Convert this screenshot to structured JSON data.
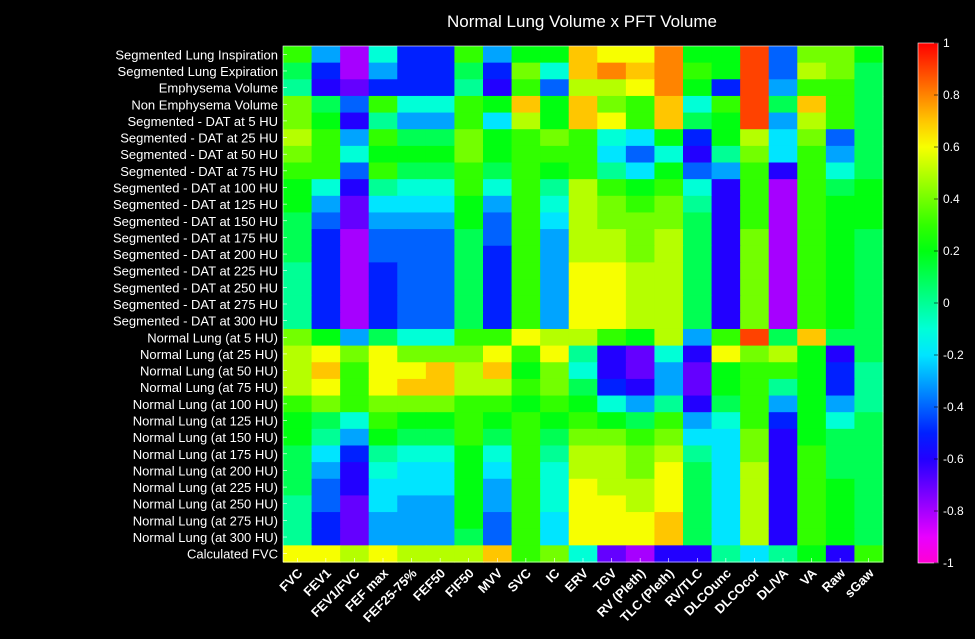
{
  "chart_data": {
    "type": "heatmap",
    "title": "Normal Lung Volume x PFT Volume",
    "rows": [
      "Segmented Lung Inspiration",
      "Segmented Lung Expiration",
      "Emphysema Volume",
      "Non Emphysema Volume",
      "Segmented - DAT at 5 HU",
      "Segmented - DAT at 25 HU",
      "Segmented - DAT at 50 HU",
      "Segmented - DAT at 75 HU",
      "Segmented - DAT at 100 HU",
      "Segmented - DAT at 125 HU",
      "Segmented - DAT at 150 HU",
      "Segmented - DAT at 175 HU",
      "Segmented - DAT at 200 HU",
      "Segmented - DAT at 225 HU",
      "Segmented - DAT at 250 HU",
      "Segmented - DAT at 275 HU",
      "Segmented - DAT at 300 HU",
      "Normal Lung (at 5 HU)",
      "Normal Lung (at 25 HU)",
      "Normal Lung (at 50 HU)",
      "Normal Lung (at 75 HU)",
      "Normal Lung (at 100 HU)",
      "Normal Lung (at 125 HU)",
      "Normal Lung (at 150 HU)",
      "Normal Lung (at 175 HU)",
      "Normal Lung (at 200 HU)",
      "Normal Lung (at 225 HU)",
      "Normal Lung (at 250 HU)",
      "Normal Lung (at 275 HU)",
      "Normal Lung (at 300 HU)",
      "Calculated FVC"
    ],
    "columns": [
      "FVC",
      "FEV1",
      "FEV1/FVC",
      "FEF max",
      "FEF25-75%",
      "FEF50",
      "FIF50",
      "MVV",
      "SVC",
      "IC",
      "ERV",
      "TGV",
      "RV (Pleth)",
      "TLC (Pleth)",
      "RV/TLC",
      "DLCOunc",
      "DLCOcor",
      "DL/VA",
      "VA",
      "Raw",
      "sGaw"
    ],
    "values": [
      [
        0.3,
        -0.3,
        -0.8,
        -0.1,
        -0.5,
        -0.5,
        0.3,
        -0.3,
        0.2,
        0.2,
        0.7,
        0.6,
        0.6,
        0.8,
        0.2,
        0.2,
        0.9,
        -0.4,
        0.4,
        0.4,
        0.2
      ],
      [
        0.1,
        -0.5,
        -0.8,
        -0.3,
        -0.5,
        -0.5,
        0.1,
        -0.5,
        0.4,
        -0.1,
        0.7,
        0.8,
        0.7,
        0.8,
        0.3,
        0.2,
        0.9,
        -0.4,
        0.5,
        0.4,
        0.1
      ],
      [
        0.0,
        -0.6,
        -0.7,
        -0.5,
        -0.5,
        -0.5,
        0.0,
        -0.6,
        0.3,
        -0.4,
        0.5,
        0.5,
        0.6,
        0.8,
        0.2,
        -0.5,
        0.9,
        -0.3,
        0.3,
        0.3,
        0.1
      ],
      [
        0.4,
        0.1,
        -0.4,
        0.3,
        -0.1,
        -0.1,
        0.3,
        0.2,
        0.7,
        0.2,
        0.7,
        0.4,
        0.3,
        0.7,
        -0.1,
        0.3,
        0.9,
        0.1,
        0.7,
        0.3,
        0.1
      ],
      [
        0.4,
        0.2,
        -0.6,
        0.0,
        -0.3,
        -0.3,
        0.3,
        -0.2,
        0.5,
        0.2,
        0.7,
        0.6,
        0.3,
        0.7,
        0.1,
        0.2,
        0.9,
        -0.3,
        0.5,
        0.3,
        0.1
      ],
      [
        0.5,
        0.3,
        -0.3,
        0.3,
        0.1,
        0.1,
        0.4,
        0.2,
        0.3,
        0.4,
        0.3,
        -0.1,
        -0.2,
        0.2,
        -0.5,
        0.2,
        0.5,
        -0.2,
        0.4,
        -0.4,
        0.1
      ],
      [
        0.4,
        0.3,
        -0.1,
        0.2,
        0.2,
        0.2,
        0.4,
        0.2,
        0.3,
        0.3,
        0.3,
        -0.2,
        -0.4,
        -0.1,
        -0.6,
        0.0,
        0.4,
        -0.2,
        0.3,
        -0.3,
        0.1
      ],
      [
        0.3,
        0.3,
        -0.4,
        0.3,
        0.1,
        0.1,
        0.3,
        0.1,
        0.3,
        0.2,
        0.3,
        0.0,
        -0.2,
        0.2,
        -0.4,
        -0.3,
        0.3,
        -0.6,
        0.3,
        -0.1,
        0.1
      ],
      [
        0.2,
        -0.1,
        -0.6,
        0.0,
        -0.1,
        -0.1,
        0.3,
        -0.1,
        0.3,
        0.0,
        0.5,
        0.3,
        0.2,
        0.3,
        -0.1,
        -0.6,
        0.3,
        -0.8,
        0.3,
        0.1,
        0.2
      ],
      [
        0.2,
        -0.3,
        -0.7,
        -0.2,
        -0.2,
        -0.2,
        0.2,
        -0.3,
        0.3,
        -0.1,
        0.5,
        0.4,
        0.3,
        0.4,
        0.0,
        -0.6,
        0.3,
        -0.8,
        0.3,
        0.2,
        0.2
      ],
      [
        0.1,
        -0.4,
        -0.7,
        -0.3,
        -0.3,
        -0.3,
        0.2,
        -0.4,
        0.3,
        -0.2,
        0.5,
        0.4,
        0.4,
        0.4,
        0.1,
        -0.6,
        0.3,
        -0.8,
        0.3,
        0.2,
        0.2
      ],
      [
        0.1,
        -0.5,
        -0.8,
        -0.4,
        -0.4,
        -0.4,
        0.1,
        -0.4,
        0.3,
        -0.3,
        0.5,
        0.5,
        0.4,
        0.5,
        0.1,
        -0.6,
        0.4,
        -0.8,
        0.3,
        0.2,
        0.1
      ],
      [
        0.1,
        -0.5,
        -0.8,
        -0.4,
        -0.4,
        -0.4,
        0.1,
        -0.5,
        0.3,
        -0.3,
        0.5,
        0.5,
        0.4,
        0.5,
        0.1,
        -0.6,
        0.4,
        -0.8,
        0.3,
        0.2,
        0.1
      ],
      [
        0.0,
        -0.5,
        -0.8,
        -0.5,
        -0.4,
        -0.4,
        0.1,
        -0.5,
        0.3,
        -0.3,
        0.6,
        0.6,
        0.5,
        0.5,
        0.1,
        -0.6,
        0.4,
        -0.8,
        0.3,
        0.2,
        0.1
      ],
      [
        0.0,
        -0.5,
        -0.8,
        -0.5,
        -0.4,
        -0.4,
        0.1,
        -0.5,
        0.3,
        -0.3,
        0.6,
        0.6,
        0.5,
        0.5,
        0.1,
        -0.6,
        0.4,
        -0.8,
        0.3,
        0.2,
        0.1
      ],
      [
        0.0,
        -0.5,
        -0.8,
        -0.5,
        -0.4,
        -0.4,
        0.1,
        -0.5,
        0.3,
        -0.3,
        0.6,
        0.6,
        0.5,
        0.5,
        0.1,
        -0.6,
        0.4,
        -0.8,
        0.3,
        0.2,
        0.1
      ],
      [
        0.0,
        -0.5,
        -0.8,
        -0.5,
        -0.4,
        -0.4,
        0.1,
        -0.5,
        0.3,
        -0.3,
        0.6,
        0.6,
        0.5,
        0.5,
        0.1,
        -0.6,
        0.4,
        -0.8,
        0.3,
        0.2,
        0.1
      ],
      [
        0.4,
        0.2,
        -0.3,
        0.1,
        -0.1,
        -0.1,
        0.3,
        0.3,
        0.6,
        0.5,
        0.5,
        0.3,
        0.2,
        0.5,
        -0.3,
        0.3,
        0.9,
        0.1,
        0.7,
        0.1,
        0.1
      ],
      [
        0.5,
        0.6,
        0.4,
        0.6,
        0.4,
        0.4,
        0.4,
        0.6,
        0.3,
        0.6,
        0.0,
        -0.6,
        -0.7,
        -0.1,
        -0.6,
        0.6,
        0.4,
        0.5,
        0.2,
        -0.6,
        0.1
      ],
      [
        0.5,
        0.7,
        0.3,
        0.6,
        0.6,
        0.7,
        0.5,
        0.7,
        0.2,
        0.4,
        -0.1,
        -0.6,
        -0.7,
        -0.3,
        -0.7,
        0.2,
        0.3,
        0.3,
        0.2,
        -0.5,
        0.0
      ],
      [
        0.5,
        0.6,
        0.3,
        0.6,
        0.7,
        0.7,
        0.5,
        0.5,
        0.3,
        0.4,
        0.1,
        -0.5,
        -0.6,
        -0.3,
        -0.7,
        0.2,
        0.3,
        0.0,
        0.2,
        -0.5,
        0.0
      ],
      [
        0.3,
        0.4,
        0.3,
        0.4,
        0.4,
        0.4,
        0.3,
        0.3,
        0.2,
        0.3,
        0.2,
        -0.1,
        -0.3,
        0.0,
        -0.6,
        0.1,
        0.3,
        -0.3,
        0.2,
        -0.3,
        0.0
      ],
      [
        0.2,
        0.1,
        -0.1,
        0.3,
        0.2,
        0.2,
        0.3,
        0.2,
        0.3,
        0.2,
        0.3,
        0.2,
        0.1,
        0.3,
        -0.3,
        -0.1,
        0.3,
        -0.5,
        0.2,
        -0.1,
        0.1
      ],
      [
        0.2,
        0.0,
        -0.3,
        0.2,
        0.1,
        0.1,
        0.3,
        0.1,
        0.3,
        0.1,
        0.4,
        0.4,
        0.3,
        0.4,
        -0.2,
        -0.2,
        0.4,
        -0.6,
        0.2,
        0.1,
        0.1
      ],
      [
        0.1,
        -0.2,
        -0.5,
        0.0,
        -0.1,
        -0.1,
        0.2,
        -0.1,
        0.3,
        0.0,
        0.5,
        0.5,
        0.4,
        0.5,
        0.0,
        -0.2,
        0.4,
        -0.6,
        0.3,
        0.1,
        0.1
      ],
      [
        0.1,
        -0.3,
        -0.6,
        -0.1,
        -0.2,
        -0.2,
        0.2,
        -0.2,
        0.3,
        -0.1,
        0.5,
        0.5,
        0.4,
        0.6,
        0.1,
        -0.2,
        0.5,
        -0.6,
        0.3,
        0.1,
        0.1
      ],
      [
        0.1,
        -0.4,
        -0.6,
        -0.2,
        -0.2,
        -0.2,
        0.2,
        -0.3,
        0.3,
        -0.1,
        0.6,
        0.5,
        0.5,
        0.6,
        0.1,
        -0.2,
        0.5,
        -0.6,
        0.3,
        0.2,
        0.1
      ],
      [
        0.0,
        -0.4,
        -0.7,
        -0.2,
        -0.3,
        -0.3,
        0.2,
        -0.3,
        0.3,
        -0.1,
        0.6,
        0.6,
        0.5,
        0.6,
        0.1,
        -0.2,
        0.5,
        -0.6,
        0.3,
        0.2,
        0.1
      ],
      [
        0.0,
        -0.5,
        -0.7,
        -0.3,
        -0.3,
        -0.3,
        0.2,
        -0.4,
        0.3,
        -0.2,
        0.6,
        0.6,
        0.6,
        0.7,
        0.1,
        -0.2,
        0.5,
        -0.6,
        0.3,
        0.2,
        0.1
      ],
      [
        0.0,
        -0.5,
        -0.7,
        -0.3,
        -0.3,
        -0.3,
        0.1,
        -0.4,
        0.3,
        -0.2,
        0.6,
        0.6,
        0.6,
        0.7,
        0.1,
        -0.2,
        0.5,
        -0.6,
        0.3,
        0.2,
        0.1
      ],
      [
        0.6,
        0.6,
        0.5,
        0.6,
        0.5,
        0.5,
        0.5,
        0.7,
        0.3,
        0.4,
        -0.1,
        -0.7,
        -0.8,
        -0.6,
        -0.6,
        0.0,
        -0.2,
        0.0,
        0.2,
        -0.6,
        0.3
      ]
    ],
    "colorbar": {
      "min": -1,
      "max": 1,
      "ticks": [
        "1",
        "0.8",
        "0.6",
        "0.4",
        "0.2",
        "0",
        "-0.2",
        "-0.4",
        "-0.6",
        "-0.8",
        "-1"
      ]
    },
    "colormap": "hsv-like (magenta to red)"
  }
}
